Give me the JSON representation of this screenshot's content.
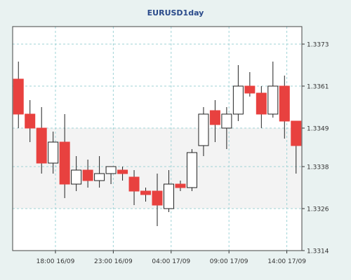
{
  "chart_data": {
    "type": "candlestick",
    "title": "EURUSD1day",
    "xlabel": "",
    "ylabel": "",
    "ylim": [
      1.3314,
      1.3378
    ],
    "y_ticks": [
      1.3314,
      1.3326,
      1.3338,
      1.3349,
      1.3361,
      1.3373
    ],
    "y_tick_labels": [
      "1.3314",
      "1.3326",
      "1.3338",
      "1.3349",
      "1.3361",
      "1.3373"
    ],
    "x_tick_labels": [
      {
        "index": 3.7,
        "label": "18:00 16/09"
      },
      {
        "index": 8.7,
        "label": "23:00 16/09"
      },
      {
        "index": 13.7,
        "label": "04:00 17/09"
      },
      {
        "index": 18.7,
        "label": "09:00 17/09"
      },
      {
        "index": 23.7,
        "label": "14:00 17/09"
      }
    ],
    "grid": true,
    "up_color": "#ffffff",
    "down_color": "#e8413f",
    "candles": [
      {
        "open": 1.3363,
        "high": 1.3368,
        "low": 1.3349,
        "close": 1.3353
      },
      {
        "open": 1.3353,
        "high": 1.3357,
        "low": 1.3345,
        "close": 1.3349
      },
      {
        "open": 1.3349,
        "high": 1.3355,
        "low": 1.3336,
        "close": 1.3339
      },
      {
        "open": 1.3339,
        "high": 1.3348,
        "low": 1.3336,
        "close": 1.3345
      },
      {
        "open": 1.3345,
        "high": 1.3353,
        "low": 1.3329,
        "close": 1.3333
      },
      {
        "open": 1.3333,
        "high": 1.3341,
        "low": 1.3331,
        "close": 1.3337
      },
      {
        "open": 1.3337,
        "high": 1.334,
        "low": 1.3332,
        "close": 1.3334
      },
      {
        "open": 1.3334,
        "high": 1.3341,
        "low": 1.3332,
        "close": 1.3336
      },
      {
        "open": 1.3336,
        "high": 1.3338,
        "low": 1.3333,
        "close": 1.3338
      },
      {
        "open": 1.3337,
        "high": 1.3338,
        "low": 1.3334,
        "close": 1.3336
      },
      {
        "open": 1.3335,
        "high": 1.3337,
        "low": 1.3327,
        "close": 1.3331
      },
      {
        "open": 1.3331,
        "high": 1.3332,
        "low": 1.3328,
        "close": 1.333
      },
      {
        "open": 1.3331,
        "high": 1.3336,
        "low": 1.3321,
        "close": 1.3327
      },
      {
        "open": 1.3326,
        "high": 1.3337,
        "low": 1.3325,
        "close": 1.3333
      },
      {
        "open": 1.3333,
        "high": 1.3334,
        "low": 1.3331,
        "close": 1.3332
      },
      {
        "open": 1.3332,
        "high": 1.3343,
        "low": 1.3331,
        "close": 1.3342
      },
      {
        "open": 1.3344,
        "high": 1.3355,
        "low": 1.3341,
        "close": 1.3353
      },
      {
        "open": 1.3354,
        "high": 1.3357,
        "low": 1.3345,
        "close": 1.335
      },
      {
        "open": 1.3349,
        "high": 1.3355,
        "low": 1.3343,
        "close": 1.3353
      },
      {
        "open": 1.3353,
        "high": 1.3367,
        "low": 1.3351,
        "close": 1.3361
      },
      {
        "open": 1.3361,
        "high": 1.3365,
        "low": 1.3358,
        "close": 1.3359
      },
      {
        "open": 1.3359,
        "high": 1.3361,
        "low": 1.3349,
        "close": 1.3353
      },
      {
        "open": 1.3353,
        "high": 1.3368,
        "low": 1.3352,
        "close": 1.3361
      },
      {
        "open": 1.3361,
        "high": 1.3364,
        "low": 1.3346,
        "close": 1.3351
      },
      {
        "open": 1.3351,
        "high": 1.3351,
        "low": 1.3336,
        "close": 1.3344
      }
    ]
  }
}
